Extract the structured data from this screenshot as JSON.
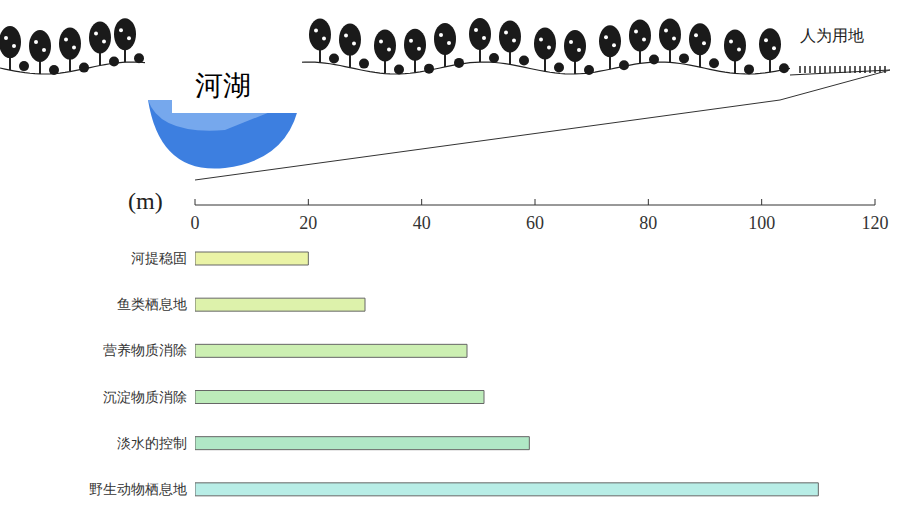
{
  "chart_data": {
    "type": "bar",
    "orientation": "horizontal",
    "xlabel": "(m)",
    "annotations": [
      "河湖",
      "人为用地"
    ],
    "categories": [
      "河提稳固",
      "鱼类栖息地",
      "营养物质消除",
      "沉淀物质消除",
      "淡水的控制",
      "野生动物栖息地"
    ],
    "values": [
      20,
      30,
      48,
      51,
      59,
      110
    ],
    "colors": [
      "#eaf3a6",
      "#ddf2ab",
      "#ccefb2",
      "#bdebba",
      "#b0e8c6",
      "#b8ede6"
    ],
    "xlim": [
      0,
      120
    ],
    "xticks": [
      0,
      20,
      40,
      60,
      80,
      100,
      120
    ],
    "grid": false
  }
}
